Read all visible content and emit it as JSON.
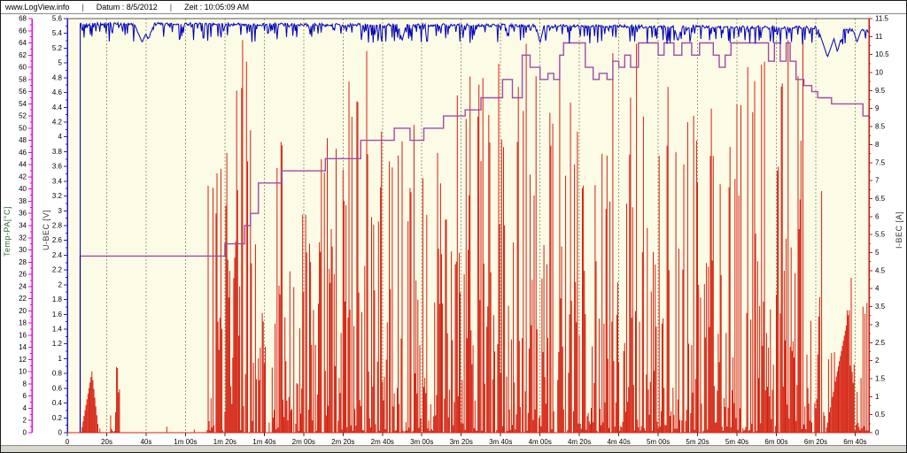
{
  "header": {
    "site": "www.LogView.info",
    "sep": "|",
    "date_label": "Datum : 8/5/2012",
    "time_label": "Zeit : 10:05:09 AM"
  },
  "chart_data": {
    "type": "line",
    "title": "",
    "plot_background": "#FBFBE6",
    "grid": {
      "interval_s": 20,
      "color": "#A0A078",
      "style": "dashed-vertical"
    },
    "layout": {
      "plot_left": 75,
      "plot_right": 980,
      "plot_top": 20,
      "plot_bottom": 488,
      "t_max": 407
    },
    "x_axis": {
      "unit": "time",
      "tick_color": "#333333",
      "label_color": "#000000",
      "ticks": [
        [
          0,
          "0"
        ],
        [
          20,
          "20s"
        ],
        [
          40,
          "40s"
        ],
        [
          60,
          "1m 00s"
        ],
        [
          80,
          "1m 20s"
        ],
        [
          100,
          "1m 40s"
        ],
        [
          120,
          "2m 00s"
        ],
        [
          140,
          "2m 20s"
        ],
        [
          160,
          "2m 40s"
        ],
        [
          180,
          "3m 00s"
        ],
        [
          200,
          "3m 20s"
        ],
        [
          220,
          "3m 40s"
        ],
        [
          240,
          "4m 00s"
        ],
        [
          260,
          "4m 20s"
        ],
        [
          280,
          "4m 40s"
        ],
        [
          300,
          "5m 00s"
        ],
        [
          320,
          "5m 20s"
        ],
        [
          340,
          "5m 40s"
        ],
        [
          360,
          "6m 00s"
        ],
        [
          380,
          "6m 20s"
        ],
        [
          400,
          "6m 40s"
        ]
      ]
    },
    "axes": [
      {
        "id": "temp",
        "title": "Temp-PA[°C]",
        "side": "left",
        "x": 35,
        "min": 0,
        "max": 68,
        "step": 2,
        "minor": 1,
        "color": "#E800E8",
        "title_color": "#2F6B2F",
        "label_color": "#000000"
      },
      {
        "id": "u_bec",
        "title": "U-BEC [V]",
        "side": "left",
        "x": 75,
        "min": 0,
        "max": 5.6,
        "step": 0.2,
        "minor": 0.1,
        "color": "#2020C0",
        "title_color": "#333333",
        "label_color": "#000000"
      },
      {
        "id": "i_bec",
        "title": "I-BEC [A]",
        "side": "right",
        "x": 980,
        "min": 0,
        "max": 11.5,
        "step": 0.5,
        "minor": 0.25,
        "color": "#C81414",
        "title_color": "#333333",
        "label_color": "#000000"
      }
    ],
    "series": {
      "temp": {
        "name": "Temp-PA",
        "axis": "temp",
        "color": "#A04CA8",
        "type": "step",
        "points": [
          [
            6.5,
            29
          ],
          [
            80,
            31
          ],
          [
            90,
            34
          ],
          [
            93,
            36
          ],
          [
            97,
            41
          ],
          [
            109,
            43
          ],
          [
            131,
            45
          ],
          [
            149,
            48
          ],
          [
            166,
            50
          ],
          [
            174,
            48
          ],
          [
            181,
            50
          ],
          [
            191,
            52
          ],
          [
            202,
            53
          ],
          [
            210,
            55
          ],
          [
            221,
            58
          ],
          [
            226,
            55
          ],
          [
            231,
            62
          ],
          [
            235,
            60
          ],
          [
            240,
            58
          ],
          [
            244,
            59
          ],
          [
            247,
            58
          ],
          [
            250,
            62
          ],
          [
            252,
            64
          ],
          [
            261,
            64
          ],
          [
            263,
            60
          ],
          [
            267,
            58
          ],
          [
            270,
            59
          ],
          [
            274,
            58
          ],
          [
            277,
            61
          ],
          [
            280,
            60
          ],
          [
            283,
            62
          ],
          [
            286,
            60
          ],
          [
            290,
            64
          ],
          [
            300,
            62
          ],
          [
            303,
            64
          ],
          [
            308,
            62
          ],
          [
            312,
            64
          ],
          [
            317,
            62
          ],
          [
            321,
            64
          ],
          [
            328,
            62
          ],
          [
            331,
            60
          ],
          [
            334,
            62
          ],
          [
            337,
            64
          ],
          [
            356,
            61
          ],
          [
            359,
            64
          ],
          [
            362,
            61
          ],
          [
            365,
            64
          ],
          [
            367,
            61
          ],
          [
            370,
            58
          ],
          [
            374,
            57
          ],
          [
            378,
            56
          ],
          [
            381,
            55
          ],
          [
            386,
            55
          ],
          [
            388,
            54
          ],
          [
            402,
            54
          ],
          [
            404,
            52
          ]
        ]
      },
      "u_bec": {
        "name": "U-BEC",
        "axis": "u_bec",
        "color": "#0000BB",
        "type": "noisy_line",
        "start_t": 6.5,
        "end_t": 407,
        "dt": 0.4,
        "seed": 42,
        "base_points": [
          [
            6.5,
            5.53
          ],
          [
            200,
            5.51
          ],
          [
            380,
            5.48
          ],
          [
            407,
            5.43
          ]
        ],
        "jitter": 0.02,
        "tick_prob": 0.42,
        "tick_depth_max": 0.24,
        "dips": [
          [
            38,
            5.28,
            4
          ],
          [
            41,
            5.32,
            3
          ],
          [
            170,
            5.3,
            2
          ],
          [
            240,
            5.27,
            2
          ],
          [
            310,
            5.3,
            2
          ],
          [
            386,
            5.08,
            5
          ],
          [
            391,
            5.15,
            3
          ],
          [
            401,
            5.28,
            2
          ]
        ]
      },
      "i_bec": {
        "name": "I-BEC",
        "axis": "i_bec",
        "color": "#D42010",
        "type": "spikes",
        "end_t": 407,
        "dt": 0.5,
        "seed": 7,
        "bias": 2.4,
        "segments": [
          [
            0,
            7,
            0,
            0
          ],
          [
            16,
            22,
            0.15,
            0.3
          ],
          [
            22,
            27,
            0.75,
            1.8
          ],
          [
            27,
            71,
            0.08,
            0.25
          ],
          [
            71,
            77,
            0.8,
            7
          ],
          [
            77,
            95,
            0.9,
            10.9
          ],
          [
            95,
            104,
            0.65,
            6
          ],
          [
            104,
            122,
            0.85,
            8.5
          ],
          [
            122,
            140,
            0.9,
            9
          ],
          [
            140,
            158,
            0.9,
            10.4
          ],
          [
            158,
            175,
            0.85,
            9
          ],
          [
            175,
            195,
            0.9,
            9.5
          ],
          [
            195,
            215,
            0.9,
            10
          ],
          [
            215,
            235,
            0.9,
            10.8
          ],
          [
            235,
            255,
            0.9,
            10.4
          ],
          [
            255,
            275,
            0.9,
            9.5
          ],
          [
            275,
            300,
            0.9,
            10.9
          ],
          [
            300,
            320,
            0.85,
            9
          ],
          [
            320,
            345,
            0.9,
            9.2
          ],
          [
            345,
            360,
            0.85,
            10.4
          ],
          [
            360,
            375,
            0.9,
            10.9
          ],
          [
            375,
            385,
            0.8,
            7
          ],
          [
            385,
            397,
            0.5,
            2.2
          ],
          [
            397,
            402,
            0.8,
            4.3
          ],
          [
            402,
            407,
            0.9,
            3.5
          ]
        ],
        "ramps": [
          [
            7,
            12.5,
            0,
            1.7
          ],
          [
            12.5,
            16,
            1.7,
            0
          ],
          [
            385,
            397,
            0,
            3.4
          ]
        ],
        "spikes": [
          [
            74,
            6.8
          ],
          [
            76,
            7.2
          ],
          [
            86,
            9.5
          ],
          [
            89,
            10.9
          ],
          [
            91,
            10.3
          ],
          [
            93,
            8.4
          ],
          [
            147,
            9.2
          ],
          [
            152,
            10.6
          ],
          [
            229,
            9.6
          ],
          [
            233,
            10.8
          ],
          [
            238,
            9.9
          ],
          [
            250,
            10.4
          ],
          [
            286,
            9.3
          ],
          [
            289,
            10.8
          ],
          [
            305,
            9.6
          ],
          [
            318,
            8.8
          ],
          [
            327,
            9.0
          ],
          [
            342,
            9.1
          ],
          [
            348,
            8.9
          ],
          [
            354,
            10.3
          ],
          [
            363,
            9.7
          ],
          [
            366,
            10.9
          ],
          [
            371,
            9.9
          ],
          [
            396,
            3.4
          ],
          [
            398,
            4.3
          ],
          [
            404,
            3.5
          ],
          [
            405,
            3.3
          ],
          [
            406,
            3.6
          ]
        ]
      }
    }
  }
}
